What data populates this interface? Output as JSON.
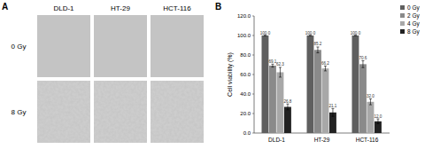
{
  "panel_a": {
    "label": "A",
    "columns": [
      "DLD-1",
      "HT-29",
      "HCT-116"
    ],
    "rows": [
      "0 Gy",
      "8 Gy"
    ]
  },
  "panel_b": {
    "label": "B"
  },
  "chart_data": {
    "type": "bar",
    "y_label": "Cell viability (%)",
    "categories": [
      "DLD-1",
      "HT-29",
      "HCT-116"
    ],
    "series": [
      {
        "name": "0 Gy",
        "color": "#5f5f5f",
        "values": [
          100.0,
          100.0,
          100.0
        ],
        "value_labels": [
          "100.0",
          "100.0",
          "100.0"
        ],
        "errors": [
          0,
          0,
          0
        ]
      },
      {
        "name": "2 Gy",
        "color": "#8a8a8a",
        "values": [
          69.1,
          85.2,
          70.6
        ],
        "errors": [
          1.5,
          3,
          3.5
        ]
      },
      {
        "name": "4 Gy",
        "color": "#a8a8a8",
        "values": [
          62.3,
          66.2,
          32.0
        ],
        "value_labels": [
          "62.3",
          "66.2",
          "32.0"
        ],
        "errors": [
          5,
          2.5,
          3
        ]
      },
      {
        "name": "8 Gy",
        "color": "#222222",
        "values": [
          26.8,
          21.1,
          12.0
        ],
        "value_labels": [
          "26.8",
          "21.1",
          "12.0"
        ],
        "errors": [
          3,
          4,
          2.5
        ]
      }
    ],
    "ylim": [
      0,
      120
    ],
    "yticks": [
      {
        "value": 0,
        "label": "0.0"
      },
      {
        "value": 20,
        "label": "20.0"
      },
      {
        "value": 40,
        "label": "40.0"
      },
      {
        "value": 60,
        "label": "60.0"
      },
      {
        "value": 80,
        "label": "80.0"
      },
      {
        "value": 100,
        "label": "100.0"
      },
      {
        "value": 120,
        "label": "120.0"
      }
    ],
    "grid": false,
    "legend": "upper right",
    "data_labels": true
  }
}
